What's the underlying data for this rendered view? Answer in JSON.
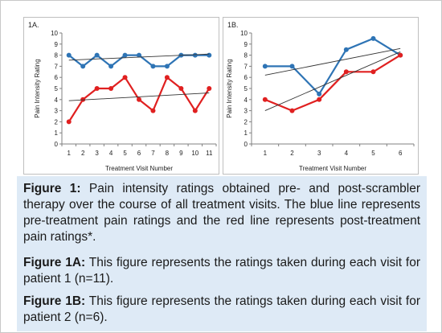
{
  "chart_data": [
    {
      "type": "line",
      "panel_label": "1A.",
      "xlabel": "Treatment Visit Number",
      "ylabel": "Pain Intensity Rating",
      "x": [
        1,
        2,
        3,
        4,
        5,
        6,
        7,
        8,
        9,
        10,
        11
      ],
      "ylim": [
        0,
        10
      ],
      "yticks": [
        0,
        1,
        2,
        3,
        4,
        5,
        6,
        7,
        8,
        9,
        10
      ],
      "grid": false,
      "legend": "none",
      "series": [
        {
          "color": "#2e74b5",
          "values": [
            8,
            7,
            8,
            7,
            8,
            8,
            7,
            7,
            8,
            8,
            8
          ]
        },
        {
          "color": "#e02020",
          "values": [
            2,
            4,
            5,
            5,
            6,
            4,
            3,
            6,
            5,
            3,
            5
          ]
        }
      ],
      "trendlines": [
        {
          "color": "#333333",
          "start": [
            1,
            7.55
          ],
          "end": [
            11,
            8.1
          ]
        },
        {
          "color": "#333333",
          "start": [
            1,
            3.9
          ],
          "end": [
            11,
            4.6
          ]
        }
      ]
    },
    {
      "type": "line",
      "panel_label": "1B.",
      "xlabel": "Treatment Visit Number",
      "ylabel": "Pain Intensity Rating",
      "x": [
        1,
        2,
        3,
        4,
        5,
        6
      ],
      "ylim": [
        0,
        10
      ],
      "yticks": [
        0,
        1,
        2,
        3,
        4,
        5,
        6,
        7,
        8,
        9,
        10
      ],
      "grid": false,
      "legend": "none",
      "series": [
        {
          "color": "#2e74b5",
          "values": [
            7,
            7,
            4.5,
            8.5,
            9.5,
            8
          ]
        },
        {
          "color": "#e02020",
          "values": [
            4,
            3,
            4,
            6.5,
            6.5,
            8
          ]
        }
      ],
      "trendlines": [
        {
          "color": "#333333",
          "start": [
            1,
            6.2
          ],
          "end": [
            6,
            8.6
          ]
        },
        {
          "color": "#333333",
          "start": [
            1,
            3.0
          ],
          "end": [
            6,
            8.3
          ]
        }
      ]
    }
  ],
  "caption": {
    "fig1_label": "Figure 1:",
    "fig1_text": " Pain intensity ratings obtained pre- and post-scrambler therapy over the course of all treatment visits. The blue line represents pre-treatment pain ratings and the red line represents post-treatment pain ratings*.",
    "fig1a_label": "Figure 1A:",
    "fig1a_text": " This figure represents the ratings taken during each visit for patient 1 (n=11).",
    "fig1b_label": "Figure 1B:",
    "fig1b_text": " This figure represents the ratings taken during each visit for patient 2 (n=6)."
  }
}
